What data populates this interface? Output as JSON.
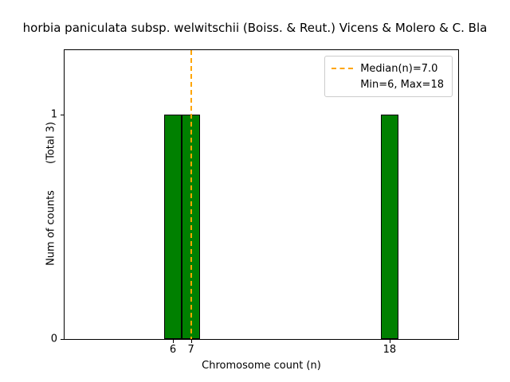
{
  "chart_data": {
    "type": "bar",
    "title": "horbia paniculata subsp. welwitschii (Boiss. & Reut.) Vicens & Molero & C. Bla",
    "xlabel": "Chromosome count (n)",
    "ylabel": "Num of counts        (Total 3)",
    "total_annotation": "(Total 3)",
    "categories": [
      6,
      7,
      18
    ],
    "values": [
      1,
      1,
      1
    ],
    "bar_width": 1,
    "bar_color": "#008000",
    "bar_edge_color": "#000000",
    "xticks": [
      6,
      7,
      18
    ],
    "yticks": [
      0,
      1
    ],
    "xlim": [
      0,
      21.8
    ],
    "ylim": [
      0,
      1.285
    ],
    "grid": false,
    "median_line": {
      "x": 7.0,
      "color": "#ffa500",
      "style": "dashed",
      "label": "Median(n)=7.0"
    },
    "legend": {
      "position": "top-right",
      "items": [
        "Median(n)=7.0",
        "Min=6, Max=18"
      ]
    }
  }
}
